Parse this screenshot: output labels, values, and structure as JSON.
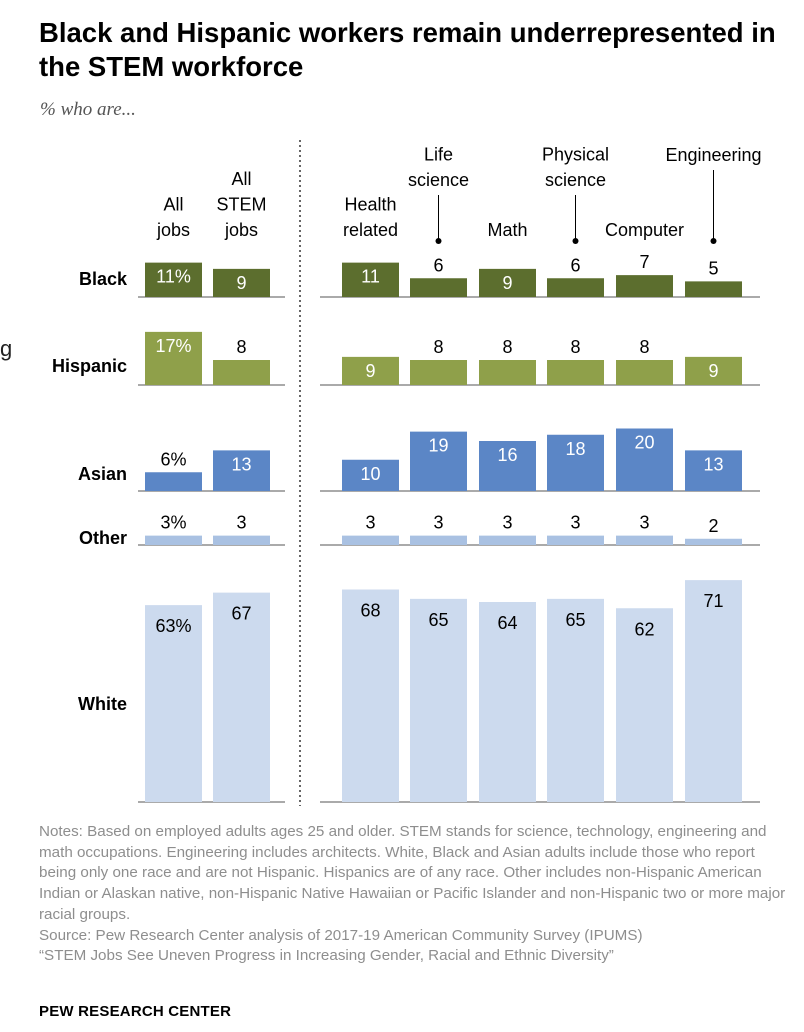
{
  "title": "Black and Hispanic workers remain underrepresented in the STEM workforce",
  "subtitle": "% who are...",
  "edge_fragment": "g",
  "chart_data": {
    "type": "bar",
    "layout": "small-multiples",
    "groups": [
      {
        "categories": [
          "All\njobs",
          "All\nSTEM\njobs"
        ]
      },
      {
        "categories": [
          "Health\nrelated",
          "Life\nscience",
          "Math",
          "Physical\nscience",
          "Computer",
          "Engineering"
        ]
      }
    ],
    "series": [
      {
        "name": "Black",
        "color": "#5c6e2e",
        "text_color": "#ffffff",
        "values": [
          11,
          9,
          11,
          6,
          9,
          6,
          7,
          5
        ],
        "labels": [
          "11%",
          "9",
          "11",
          "6",
          "9",
          "6",
          "7",
          "5"
        ]
      },
      {
        "name": "Hispanic",
        "color": "#8fa04a",
        "text_color": "#ffffff",
        "values": [
          17,
          8,
          9,
          8,
          8,
          8,
          8,
          9
        ],
        "labels": [
          "17%",
          "8",
          "9",
          "8",
          "8",
          "8",
          "8",
          "9"
        ]
      },
      {
        "name": "Asian",
        "color": "#5b86c6",
        "text_color": "#ffffff",
        "values": [
          6,
          13,
          10,
          19,
          16,
          18,
          20,
          13
        ],
        "labels": [
          "6%",
          "13",
          "10",
          "19",
          "16",
          "18",
          "20",
          "13"
        ]
      },
      {
        "name": "Other",
        "color": "#a9c1e2",
        "text_color": "#000000",
        "values": [
          3,
          3,
          3,
          3,
          3,
          3,
          3,
          2
        ],
        "labels": [
          "3%",
          "3",
          "3",
          "3",
          "3",
          "3",
          "3",
          "2"
        ]
      },
      {
        "name": "White",
        "color": "#ccdaee",
        "text_color": "#000000",
        "values": [
          63,
          67,
          68,
          65,
          64,
          65,
          62,
          71
        ],
        "labels": [
          "63%",
          "67",
          "68",
          "65",
          "64",
          "65",
          "62",
          "71"
        ]
      }
    ]
  },
  "notes": "Notes: Based on employed adults ages 25 and older. STEM stands for science, technology, engineering and math occupations. Engineering includes architects. White, Black and Asian adults include those who report being only one race and are not Hispanic. Hispanics are of any race. Other includes non-Hispanic American Indian or Alaskan native, non-Hispanic Native Hawaiian or Pacific Islander and non-Hispanic two or more major racial groups.\nSource: Pew Research Center analysis of 2017-19 American Community Survey (IPUMS)\n“STEM Jobs See Uneven Progress in Increasing Gender, Racial and Ethnic Diversity”",
  "source_org": "PEW RESEARCH CENTER"
}
